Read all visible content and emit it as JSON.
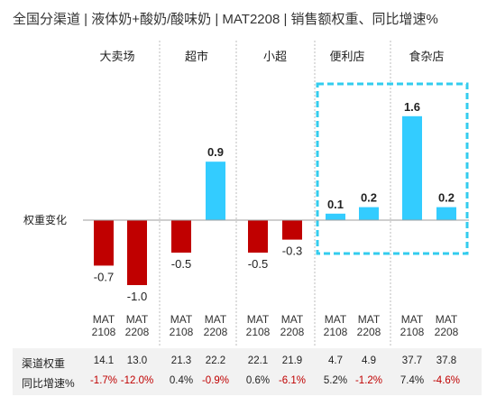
{
  "title": "全国分渠道 | 液体奶+酸奶/酸味奶 | MAT2208 | 销售额权重、同比增速%",
  "chart_data": {
    "type": "bar",
    "ylabel": "权重变化",
    "groups": [
      "大卖场",
      "超市",
      "小超",
      "便利店",
      "食杂店"
    ],
    "periods": [
      "MAT\n2108",
      "MAT\n2208"
    ],
    "bars": [
      {
        "group": "大卖场",
        "label": "-0.7",
        "value": -0.7
      },
      {
        "group": "大卖场",
        "label": "-1.0",
        "value": -1.0
      },
      {
        "group": "超市",
        "label": "-0.5",
        "value": -0.5
      },
      {
        "group": "超市",
        "label": "0.9",
        "value": 0.9
      },
      {
        "group": "小超",
        "label": "-0.5",
        "value": -0.5
      },
      {
        "group": "小超",
        "label": "-0.3",
        "value": -0.3
      },
      {
        "group": "便利店",
        "label": "0.1",
        "value": 0.1
      },
      {
        "group": "便利店",
        "label": "0.2",
        "value": 0.2
      },
      {
        "group": "食杂店",
        "label": "1.6",
        "value": 1.6
      },
      {
        "group": "食杂店",
        "label": "0.2",
        "value": 0.2
      }
    ],
    "highlight_groups": [
      "便利店",
      "食杂店"
    ],
    "colors": {
      "positive": "#33ccff",
      "negative": "#c00000",
      "highlight_box": "#33ccee"
    }
  },
  "table": {
    "rows": [
      {
        "label": "渠道权重",
        "values": [
          "14.1",
          "13.0",
          "21.3",
          "22.2",
          "22.1",
          "21.9",
          "4.7",
          "4.9",
          "37.7",
          "37.8"
        ]
      },
      {
        "label": "同比增速%",
        "values": [
          "-1.7%",
          "-12.0%",
          "0.4%",
          "-0.9%",
          "0.6%",
          "-6.1%",
          "5.2%",
          "-1.2%",
          "7.4%",
          "-4.6%"
        ]
      }
    ]
  }
}
